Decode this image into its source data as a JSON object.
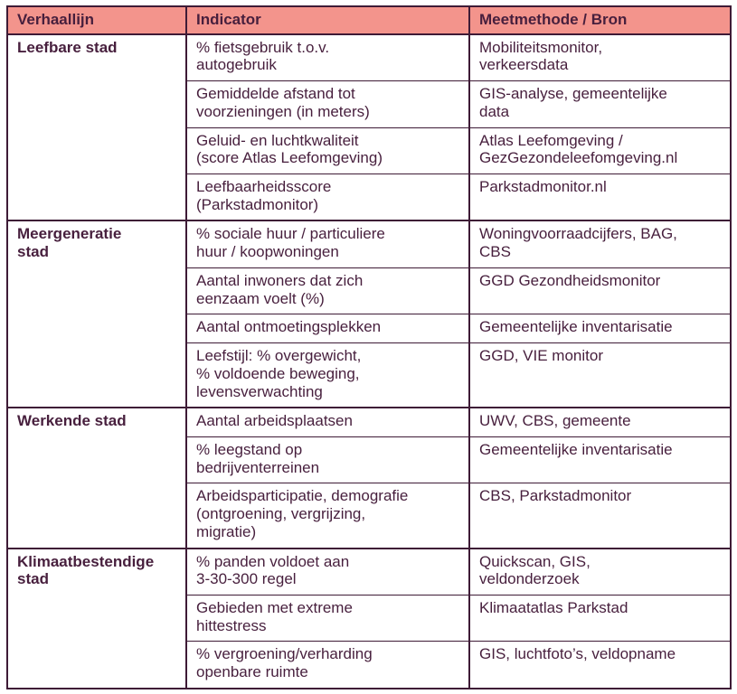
{
  "table": {
    "colors": {
      "header_bg": "#F3948C",
      "text": "#471F3D",
      "border": "#3E1B36"
    },
    "headers": [
      {
        "label": "Verhaallijn"
      },
      {
        "label": "Indicator"
      },
      {
        "label": "Meetmethode / Bron"
      }
    ],
    "groups": [
      {
        "verhaallijn": "Leefbare stad",
        "rows": [
          {
            "indicator": "% fietsgebruik t.o.v.\nautogebruik",
            "bron": "Mobiliteitsmonitor,\nverkeersdata"
          },
          {
            "indicator": "Gemiddelde afstand tot\nvoorzieningen (in meters)",
            "bron": "GIS-analyse, gemeentelijke\ndata"
          },
          {
            "indicator": "Geluid- en luchtkwaliteit\n(score Atlas Leefomgeving)",
            "bron": "Atlas Leefomgeving /\nGezGezondeleefomgeving.nl"
          },
          {
            "indicator": "Leefbaarheidsscore\n(Parkstadmonitor)",
            "bron": "Parkstadmonitor.nl"
          }
        ]
      },
      {
        "verhaallijn": "Meergeneratie\nstad",
        "rows": [
          {
            "indicator": "% sociale huur / particuliere\nhuur / koopwoningen",
            "bron": "Woningvoorraadcijfers, BAG,\nCBS"
          },
          {
            "indicator": "Aantal inwoners dat zich\neenzaam voelt (%)",
            "bron": "GGD Gezondheidsmonitor"
          },
          {
            "indicator": "Aantal ontmoetingsplekken",
            "bron": "Gemeentelijke inventarisatie"
          },
          {
            "indicator": "Leefstijl: % overgewicht,\n% voldoende beweging,\nlevensverwachting",
            "bron": "GGD, VIE monitor"
          }
        ]
      },
      {
        "verhaallijn": "Werkende stad",
        "rows": [
          {
            "indicator": "Aantal arbeidsplaatsen",
            "bron": "UWV, CBS, gemeente"
          },
          {
            "indicator": "% leegstand op\nbedrijventerreinen",
            "bron": "Gemeentelijke inventarisatie"
          },
          {
            "indicator": "Arbeidsparticipatie, demografie\n(ontgroening, vergrijzing,\nmigratie)",
            "bron": "CBS, Parkstadmonitor"
          }
        ]
      },
      {
        "verhaallijn": "Klimaatbestendige\nstad",
        "rows": [
          {
            "indicator": "% panden voldoet aan\n3-30-300 regel",
            "bron": "Quickscan, GIS,\nveldonderzoek"
          },
          {
            "indicator": "Gebieden met extreme\nhittestress",
            "bron": "Klimaatatlas Parkstad"
          },
          {
            "indicator": "% vergroening/verharding\nopenbare ruimte",
            "bron": "GIS, luchtfoto’s, veldopname"
          }
        ]
      }
    ]
  }
}
